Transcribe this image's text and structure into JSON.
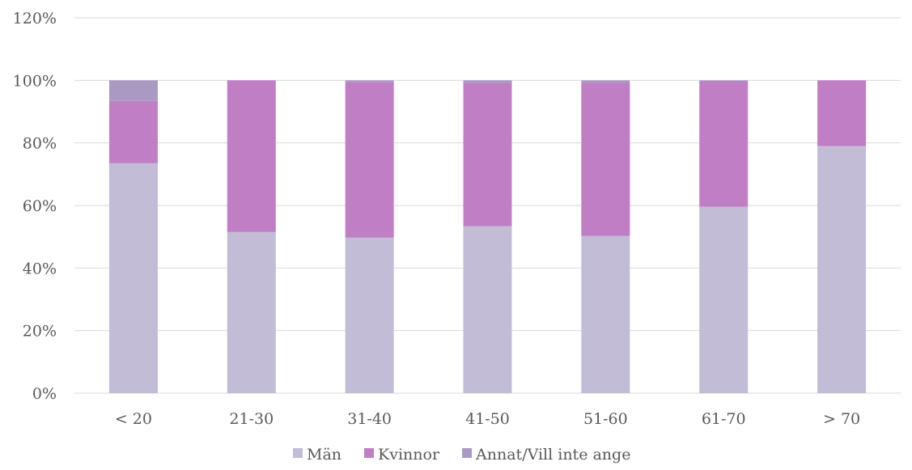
{
  "chart_data": {
    "type": "bar",
    "stacked": true,
    "categories": [
      "< 20",
      "21-30",
      "31-40",
      "41-50",
      "51-60",
      "61-70",
      "> 70"
    ],
    "series": [
      {
        "name": "Män",
        "color": "#c3bcd6",
        "values": [
          73.5,
          51.5,
          49.7,
          53.4,
          50.3,
          59.6,
          79.0
        ]
      },
      {
        "name": "Kvinnor",
        "color": "#c07fc5",
        "values": [
          19.9,
          48.5,
          49.8,
          45.8,
          49.0,
          40.1,
          21.0
        ]
      },
      {
        "name": "Annat/Vill inte ange",
        "color": "#a999c3",
        "values": [
          6.6,
          0.0,
          0.5,
          0.8,
          0.7,
          0.3,
          0.0
        ]
      }
    ],
    "ylim": [
      0,
      120
    ],
    "yticks": [
      0,
      20,
      40,
      60,
      80,
      100,
      120
    ],
    "ytick_labels": [
      "0%",
      "20%",
      "40%",
      "60%",
      "80%",
      "100%",
      "120%"
    ],
    "grid": true,
    "legend_position": "bottom",
    "title": "",
    "xlabel": "",
    "ylabel": ""
  }
}
